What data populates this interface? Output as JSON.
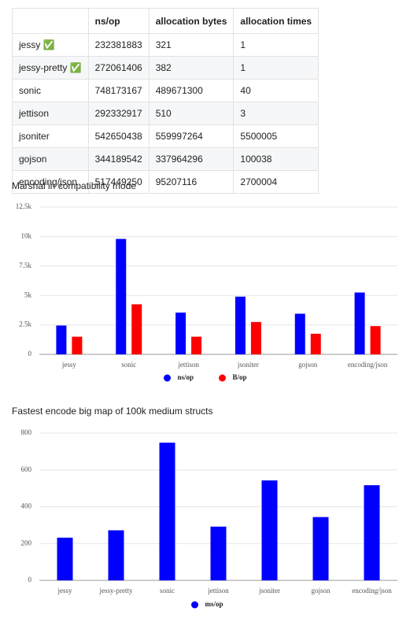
{
  "table": {
    "columns": [
      "ns/op",
      "allocation bytes",
      "allocation times"
    ],
    "rows": [
      [
        "jessy ✅",
        232381883,
        321,
        1
      ],
      [
        "jessy-pretty ✅",
        272061406,
        382,
        1
      ],
      [
        "sonic",
        748173167,
        489671300,
        40
      ],
      [
        "jettison",
        292332917,
        510,
        3
      ],
      [
        "jsoniter",
        542650438,
        559997264,
        5500005
      ],
      [
        "gojson",
        344189542,
        337964296,
        100038
      ],
      [
        "encoding/json",
        517449250,
        95207116,
        2700004
      ]
    ]
  },
  "chart_data": [
    {
      "type": "bar",
      "title": "Marshal in compatibility mode",
      "categories": [
        "jessy",
        "sonic",
        "jettison",
        "jsoniter",
        "gojson",
        "encoding/json"
      ],
      "series": [
        {
          "name": "ns/op",
          "color": "#0000ff",
          "values": [
            2450,
            9800,
            3550,
            4900,
            3450,
            5250
          ]
        },
        {
          "name": "B/op",
          "color": "#ff0000",
          "values": [
            1500,
            4250,
            1500,
            2750,
            1750,
            2400
          ]
        }
      ],
      "ylim": [
        0,
        12500
      ],
      "yticks": [
        0,
        {
          "value": 2500,
          "label": "2.5k"
        },
        {
          "value": 5000,
          "label": "5k"
        },
        {
          "value": 7500,
          "label": "7.5k"
        },
        {
          "value": 10000,
          "label": "10k"
        },
        {
          "value": 12500,
          "label": "12.5k"
        }
      ],
      "grid": true,
      "legend": "bottom"
    },
    {
      "type": "bar",
      "title": "Fastest encode big map of 100k medium structs",
      "categories": [
        "jessy",
        "jessy-pretty",
        "sonic",
        "jettison",
        "jsoniter",
        "gojson",
        "encoding/json"
      ],
      "series": [
        {
          "name": "ms/op",
          "color": "#0000ff",
          "values": [
            232,
            272,
            748,
            292,
            543,
            344,
            517
          ]
        }
      ],
      "ylim": [
        0,
        800
      ],
      "yticks": [
        0,
        200,
        400,
        600,
        800
      ],
      "grid": true,
      "legend": "bottom"
    }
  ]
}
